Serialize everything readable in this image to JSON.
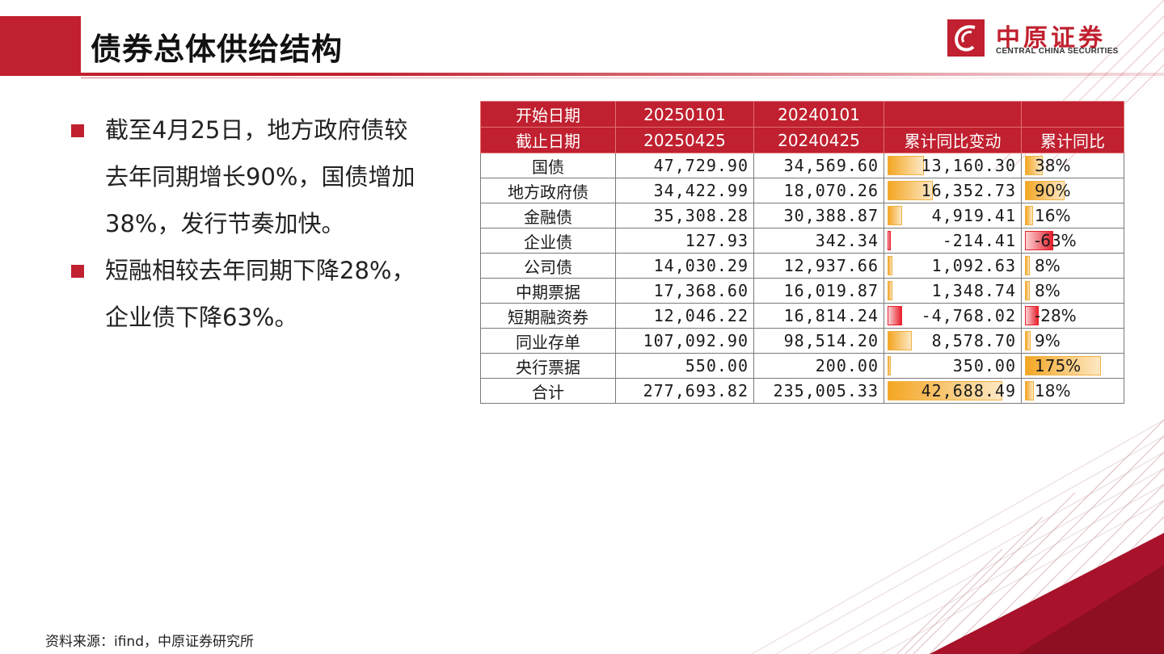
{
  "header": {
    "title": "债券总体供给结构"
  },
  "logo": {
    "cn": "中原证券",
    "en": "CENTRAL CHINA SECURITIES"
  },
  "bullets": [
    "截至4月25日，地方政府债较去年同期增长90%，国债增加38%，发行节奏加快。",
    "短融相较去年同期下降28%，企业债下降63%。"
  ],
  "table": {
    "head1": [
      "开始日期",
      "20250101",
      "20240101",
      "",
      ""
    ],
    "head2": [
      "截止日期",
      "20250425",
      "20240425",
      "累计同比变动",
      "累计同比"
    ],
    "rows": [
      {
        "name": "国债",
        "v2025": "47,729.90",
        "v2024": "34,569.60",
        "chg": "13,160.30",
        "pct": "38%",
        "chg_val": 13160.3,
        "pct_val": 38
      },
      {
        "name": "地方政府债",
        "v2025": "34,422.99",
        "v2024": "18,070.26",
        "chg": "16,352.73",
        "pct": "90%",
        "chg_val": 16352.73,
        "pct_val": 90
      },
      {
        "name": "金融债",
        "v2025": "35,308.28",
        "v2024": "30,388.87",
        "chg": "4,919.41",
        "pct": "16%",
        "chg_val": 4919.41,
        "pct_val": 16
      },
      {
        "name": "企业债",
        "v2025": "127.93",
        "v2024": "342.34",
        "chg": "-214.41",
        "pct": "-63%",
        "chg_val": -214.41,
        "pct_val": -63
      },
      {
        "name": "公司债",
        "v2025": "14,030.29",
        "v2024": "12,937.66",
        "chg": "1,092.63",
        "pct": "8%",
        "chg_val": 1092.63,
        "pct_val": 8
      },
      {
        "name": "中期票据",
        "v2025": "17,368.60",
        "v2024": "16,019.87",
        "chg": "1,348.74",
        "pct": "8%",
        "chg_val": 1348.74,
        "pct_val": 8
      },
      {
        "name": "短期融资券",
        "v2025": "12,046.22",
        "v2024": "16,814.24",
        "chg": "-4,768.02",
        "pct": "-28%",
        "chg_val": -4768.02,
        "pct_val": -28
      },
      {
        "name": "同业存单",
        "v2025": "107,092.90",
        "v2024": "98,514.20",
        "chg": "8,578.70",
        "pct": "9%",
        "chg_val": 8578.7,
        "pct_val": 9
      },
      {
        "name": "央行票据",
        "v2025": "550.00",
        "v2024": "200.00",
        "chg": "350.00",
        "pct": "175%",
        "chg_val": 350.0,
        "pct_val": 175
      },
      {
        "name": "合计",
        "v2025": "277,693.82",
        "v2024": "235,005.33",
        "chg": "42,688.49",
        "pct": "18%",
        "chg_val": 42688.49,
        "pct_val": 18
      }
    ]
  },
  "source": "资料来源：ifind，中原证券研究所",
  "colors": {
    "brand": "#c0202f",
    "bar_pos": "#f4a623",
    "bar_neg": "#e8212e"
  }
}
